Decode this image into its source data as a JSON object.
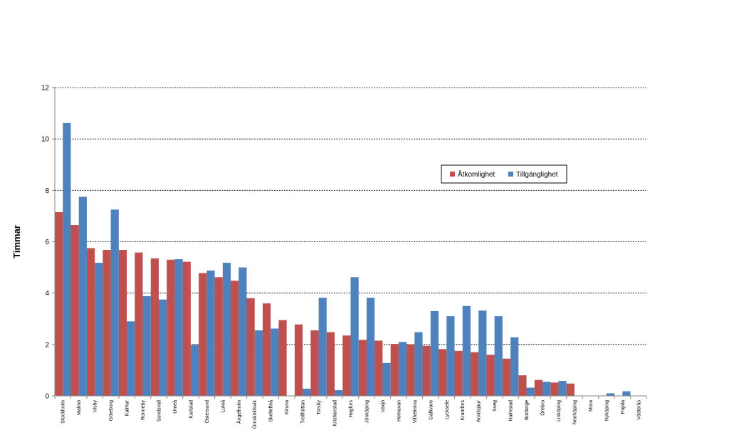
{
  "chart_data": {
    "type": "bar",
    "ylabel": "Timmar",
    "ylim": [
      0,
      12
    ],
    "yticks": [
      0,
      2,
      4,
      6,
      8,
      10,
      12
    ],
    "grid": true,
    "legend_position": "right-middle",
    "categories": [
      "Stockholm",
      "Malmö",
      "Visby",
      "Göteborg",
      "Kalmar",
      "Ronneby",
      "Sundsvall",
      "Umeå",
      "Karlstad",
      "Östersund",
      "Luleå",
      "Ängelholm",
      "Örnsköldsvik",
      "Skellefteå",
      "Kiruna",
      "Trollhättan",
      "Torsby",
      "Kristianstad",
      "Hagfors",
      "Jönköping",
      "Vaxjö",
      "Hemavan",
      "Vilhelmina",
      "Gällivare",
      "Lycksele",
      "Kramfors",
      "Arvidsjaur",
      "Sveg",
      "Halmstad",
      "Borlänge",
      "Örebro",
      "Linköping",
      "Norrköping",
      "Mora",
      "Nyköping",
      "Pajala",
      "Västerås"
    ],
    "series": [
      {
        "name": "Åtkomlighet",
        "color": "#c0504d",
        "values": [
          7.15,
          6.65,
          5.75,
          5.68,
          5.68,
          5.58,
          5.35,
          5.3,
          5.22,
          4.78,
          4.62,
          4.48,
          3.8,
          3.6,
          2.95,
          2.78,
          2.55,
          2.48,
          2.35,
          2.18,
          2.15,
          2.02,
          2.0,
          1.95,
          1.82,
          1.75,
          1.7,
          1.6,
          1.45,
          0.8,
          0.62,
          0.52,
          0.48,
          0,
          0,
          0,
          0
        ]
      },
      {
        "name": "Tillgänglighet",
        "color": "#4f81bd",
        "values": [
          10.62,
          7.75,
          5.18,
          7.25,
          2.9,
          3.88,
          3.75,
          5.32,
          1.98,
          4.88,
          5.18,
          5.0,
          2.55,
          2.62,
          0,
          0.28,
          3.82,
          0.22,
          4.62,
          3.82,
          1.28,
          2.1,
          2.48,
          3.3,
          3.1,
          3.5,
          3.32,
          3.1,
          2.28,
          0.32,
          0.55,
          0.58,
          0,
          0,
          0.1,
          0.18,
          0
        ]
      }
    ]
  }
}
